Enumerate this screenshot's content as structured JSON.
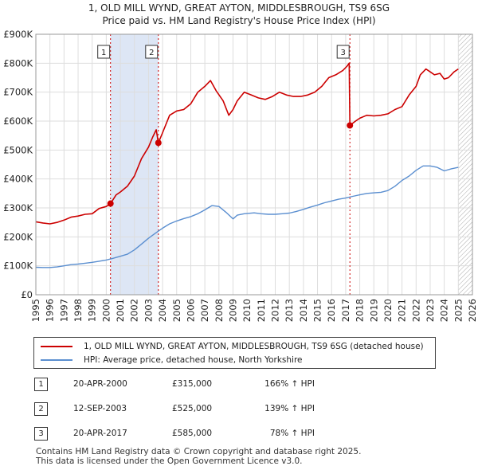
{
  "title_line1": "1, OLD MILL WYND, GREAT AYTON, MIDDLESBROUGH, TS9 6SG",
  "title_line2": "Price paid vs. HM Land Registry's House Price Index (HPI)",
  "chart_data": {
    "type": "line",
    "xlim": [
      1995,
      2026
    ],
    "ylim": [
      0,
      900000
    ],
    "x_ticks": [
      1995,
      1996,
      1997,
      1998,
      1999,
      2000,
      2001,
      2002,
      2003,
      2004,
      2005,
      2006,
      2007,
      2008,
      2009,
      2010,
      2011,
      2012,
      2013,
      2014,
      2015,
      2016,
      2017,
      2018,
      2019,
      2020,
      2021,
      2022,
      2023,
      2024,
      2025,
      2026
    ],
    "y_ticks": [
      {
        "value": 0,
        "label": "£0"
      },
      {
        "value": 100000,
        "label": "£100K"
      },
      {
        "value": 200000,
        "label": "£200K"
      },
      {
        "value": 300000,
        "label": "£300K"
      },
      {
        "value": 400000,
        "label": "£400K"
      },
      {
        "value": 500000,
        "label": "£500K"
      },
      {
        "value": 600000,
        "label": "£600K"
      },
      {
        "value": 700000,
        "label": "£700K"
      },
      {
        "value": 800000,
        "label": "£800K"
      },
      {
        "value": 900000,
        "label": "£900K"
      }
    ],
    "shaded_periods": [
      [
        2000.3,
        2003.7
      ]
    ],
    "hatched_after": 2025.0,
    "series": [
      {
        "name": "1, OLD MILL WYND, GREAT AYTON, MIDDLESBROUGH, TS9 6SG (detached house)",
        "color": "#cc0000",
        "x": [
          1995,
          1995.5,
          1996,
          1996.5,
          1997,
          1997.5,
          1998,
          1998.5,
          1999,
          1999.5,
          2000,
          2000.3,
          2000.7,
          2001,
          2001.5,
          2002,
          2002.5,
          2003,
          2003.3,
          2003.55,
          2003.7,
          2004,
          2004.5,
          2005,
          2005.5,
          2006,
          2006.5,
          2007,
          2007.4,
          2007.8,
          2008.3,
          2008.7,
          2009,
          2009.3,
          2009.8,
          2010.3,
          2010.8,
          2011.3,
          2011.8,
          2012.3,
          2012.8,
          2013.3,
          2013.8,
          2014.3,
          2014.8,
          2015.3,
          2015.8,
          2016.3,
          2016.8,
          2017.1,
          2017.25,
          2017.3,
          2017.7,
          2018,
          2018.5,
          2019,
          2019.5,
          2020,
          2020.5,
          2021,
          2021.5,
          2022,
          2022.3,
          2022.7,
          2023,
          2023.3,
          2023.7,
          2024,
          2024.3,
          2024.7,
          2025
        ],
        "values": [
          252000,
          248000,
          245000,
          250000,
          258000,
          268000,
          272000,
          278000,
          280000,
          298000,
          305000,
          315000,
          345000,
          355000,
          375000,
          410000,
          470000,
          510000,
          545000,
          570000,
          525000,
          560000,
          620000,
          635000,
          640000,
          660000,
          700000,
          720000,
          740000,
          705000,
          670000,
          620000,
          640000,
          670000,
          700000,
          690000,
          680000,
          675000,
          685000,
          700000,
          690000,
          685000,
          685000,
          690000,
          700000,
          720000,
          750000,
          760000,
          775000,
          790000,
          800000,
          585000,
          600000,
          610000,
          620000,
          618000,
          620000,
          625000,
          640000,
          650000,
          690000,
          720000,
          760000,
          780000,
          770000,
          760000,
          765000,
          745000,
          750000,
          770000,
          780000
        ]
      },
      {
        "name": "HPI: Average price, detached house, North Yorkshire",
        "color": "#5b8fd0",
        "x": [
          1995,
          1995.5,
          1996,
          1996.5,
          1997,
          1997.5,
          1998,
          1998.5,
          1999,
          1999.5,
          2000,
          2000.5,
          2001,
          2001.5,
          2002,
          2002.5,
          2003,
          2003.5,
          2004,
          2004.5,
          2005,
          2005.5,
          2006,
          2006.5,
          2007,
          2007.5,
          2008,
          2008.5,
          2009,
          2009.3,
          2009.8,
          2010.5,
          2011,
          2011.5,
          2012,
          2012.5,
          2013,
          2013.5,
          2014,
          2014.5,
          2015,
          2015.5,
          2016,
          2016.5,
          2017,
          2017.5,
          2018,
          2018.5,
          2019,
          2019.5,
          2020,
          2020.5,
          2021,
          2021.5,
          2022,
          2022.5,
          2023,
          2023.5,
          2024,
          2024.5,
          2025
        ],
        "values": [
          95000,
          94000,
          94000,
          96000,
          100000,
          104000,
          106000,
          109000,
          112000,
          116000,
          120000,
          126000,
          133000,
          140000,
          155000,
          175000,
          195000,
          213000,
          230000,
          245000,
          255000,
          263000,
          270000,
          280000,
          293000,
          308000,
          305000,
          285000,
          262000,
          275000,
          280000,
          283000,
          280000,
          278000,
          278000,
          280000,
          282000,
          288000,
          295000,
          303000,
          310000,
          318000,
          324000,
          330000,
          334000,
          340000,
          345000,
          350000,
          352000,
          354000,
          360000,
          375000,
          395000,
          410000,
          430000,
          445000,
          445000,
          440000,
          428000,
          435000,
          440000
        ]
      }
    ],
    "sales": [
      {
        "id": "1",
        "x": 2000.3,
        "price": 315000
      },
      {
        "id": "2",
        "x": 2003.7,
        "price": 525000
      },
      {
        "id": "3",
        "x": 2017.3,
        "price": 585000
      }
    ]
  },
  "legend": {
    "items": [
      {
        "label": "1, OLD MILL WYND, GREAT AYTON, MIDDLESBROUGH, TS9 6SG (detached house)",
        "color": "#cc0000"
      },
      {
        "label": "HPI: Average price, detached house, North Yorkshire",
        "color": "#5b8fd0"
      }
    ]
  },
  "sales_table": [
    {
      "num": "1",
      "date": "20-APR-2000",
      "price": "£315,000",
      "hpi": "166% ↑ HPI"
    },
    {
      "num": "2",
      "date": "12-SEP-2003",
      "price": "£525,000",
      "hpi": "139% ↑ HPI"
    },
    {
      "num": "3",
      "date": "20-APR-2017",
      "price": "£585,000",
      "hpi": "78% ↑ HPI"
    }
  ],
  "footer_line1": "Contains HM Land Registry data © Crown copyright and database right 2025.",
  "footer_line2": "This data is licensed under the Open Government Licence v3.0."
}
